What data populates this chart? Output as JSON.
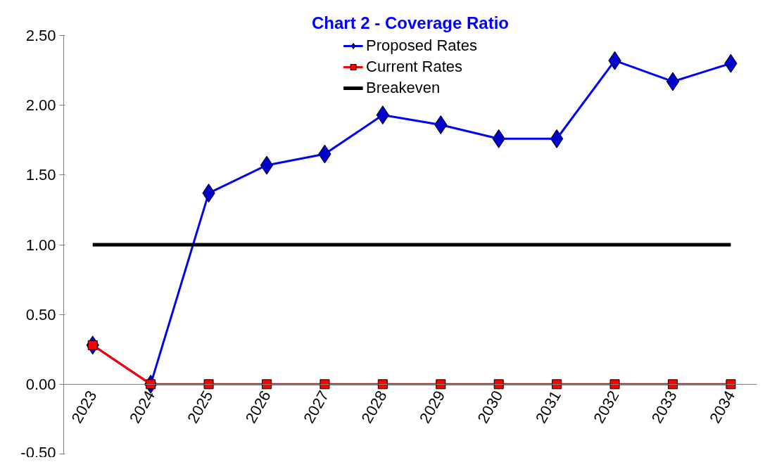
{
  "chart_data": {
    "type": "line",
    "title": "Chart 2 - Coverage Ratio",
    "categories": [
      "2023",
      "2024",
      "2025",
      "2026",
      "2027",
      "2028",
      "2029",
      "2030",
      "2031",
      "2032",
      "2033",
      "2034"
    ],
    "series": [
      {
        "name": "Proposed Rates",
        "color": "#0000ff",
        "marker": "diamond",
        "values": [
          0.28,
          0.0,
          1.37,
          1.57,
          1.65,
          1.93,
          1.86,
          1.76,
          1.76,
          2.32,
          2.17,
          2.3
        ]
      },
      {
        "name": "Current Rates",
        "color": "#ff0000",
        "marker": "square",
        "values": [
          0.28,
          0.0,
          0.0,
          0.0,
          0.0,
          0.0,
          0.0,
          0.0,
          0.0,
          0.0,
          0.0,
          0.0
        ]
      },
      {
        "name": "Breakeven",
        "color": "#000000",
        "marker": "none",
        "values": [
          1.0,
          1.0,
          1.0,
          1.0,
          1.0,
          1.0,
          1.0,
          1.0,
          1.0,
          1.0,
          1.0,
          1.0
        ]
      }
    ],
    "ylim": [
      -0.5,
      2.5
    ],
    "yticks": [
      {
        "value": -0.5,
        "label": "-0.50"
      },
      {
        "value": 0,
        "label": "0.00"
      },
      {
        "value": 0.5,
        "label": "0.50"
      },
      {
        "value": 1,
        "label": "1.00"
      },
      {
        "value": 1.5,
        "label": "1.50"
      },
      {
        "value": 2,
        "label": "2.00"
      },
      {
        "value": 2.5,
        "label": "2.50"
      }
    ],
    "grid": false,
    "legend": "top",
    "line_style": "solid"
  }
}
